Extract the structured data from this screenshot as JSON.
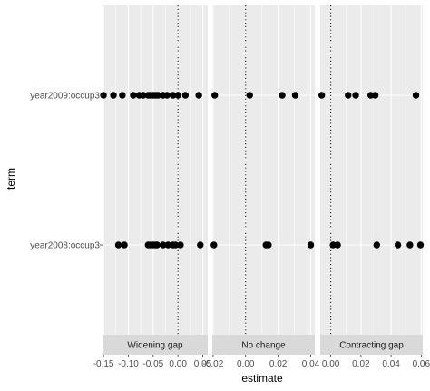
{
  "chart_data": {
    "type": "scatter",
    "xlabel": "estimate",
    "ylabel": "term",
    "y_categories": [
      "year2009:occup3",
      "year2008:occup3"
    ],
    "reference_line_x": 0,
    "facets": [
      {
        "label": "Widening gap",
        "xlim": [
          -0.152,
          0.06
        ],
        "x_ticks": [
          -0.15,
          -0.1,
          -0.05,
          0.0,
          0.05
        ],
        "x_tick_labels": [
          "-0.15",
          "-0.10",
          "-0.05",
          "0.00",
          "0.05"
        ],
        "points": {
          "year2009:occup3": [
            -0.15,
            -0.13,
            -0.112,
            -0.09,
            -0.078,
            -0.07,
            -0.06,
            -0.055,
            -0.05,
            -0.045,
            -0.04,
            -0.03,
            -0.022,
            -0.01,
            0.0,
            0.015,
            0.042
          ],
          "year2008:occup3": [
            -0.12,
            -0.108,
            -0.06,
            -0.055,
            -0.05,
            -0.045,
            -0.042,
            -0.03,
            -0.02,
            -0.01,
            -0.005,
            0.005,
            0.045
          ]
        }
      },
      {
        "label": "No change",
        "xlim": [
          -0.0205,
          0.0425
        ],
        "x_ticks": [
          -0.02,
          0.0,
          0.02,
          0.04
        ],
        "x_tick_labels": [
          "-0.02",
          "0.00",
          "0.02",
          "0.04"
        ],
        "points": {
          "year2009:occup3": [
            -0.019,
            0.0025,
            0.0225,
            0.0305
          ],
          "year2008:occup3": [
            -0.0195,
            0.0125,
            0.014,
            0.04
          ]
        }
      },
      {
        "label": "Contracting gap",
        "xlim": [
          -0.007,
          0.061
        ],
        "x_ticks": [
          0.0,
          0.02,
          0.04,
          0.06
        ],
        "x_tick_labels": [
          "0.00",
          "0.02",
          "0.04",
          "0.06"
        ],
        "points": {
          "year2009:occup3": [
            -0.006,
            0.0115,
            0.0165,
            0.0265,
            0.0295,
            0.0565
          ],
          "year2008:occup3": [
            0.0015,
            0.0045,
            0.0305,
            0.0445,
            0.0525,
            0.0595
          ]
        }
      }
    ],
    "colors": {
      "panel_bg": "#ebebeb",
      "grid_major": "#ffffff",
      "strip_bg": "#d9d9d9",
      "point": "#000000",
      "text": "#4d4d4d"
    }
  }
}
